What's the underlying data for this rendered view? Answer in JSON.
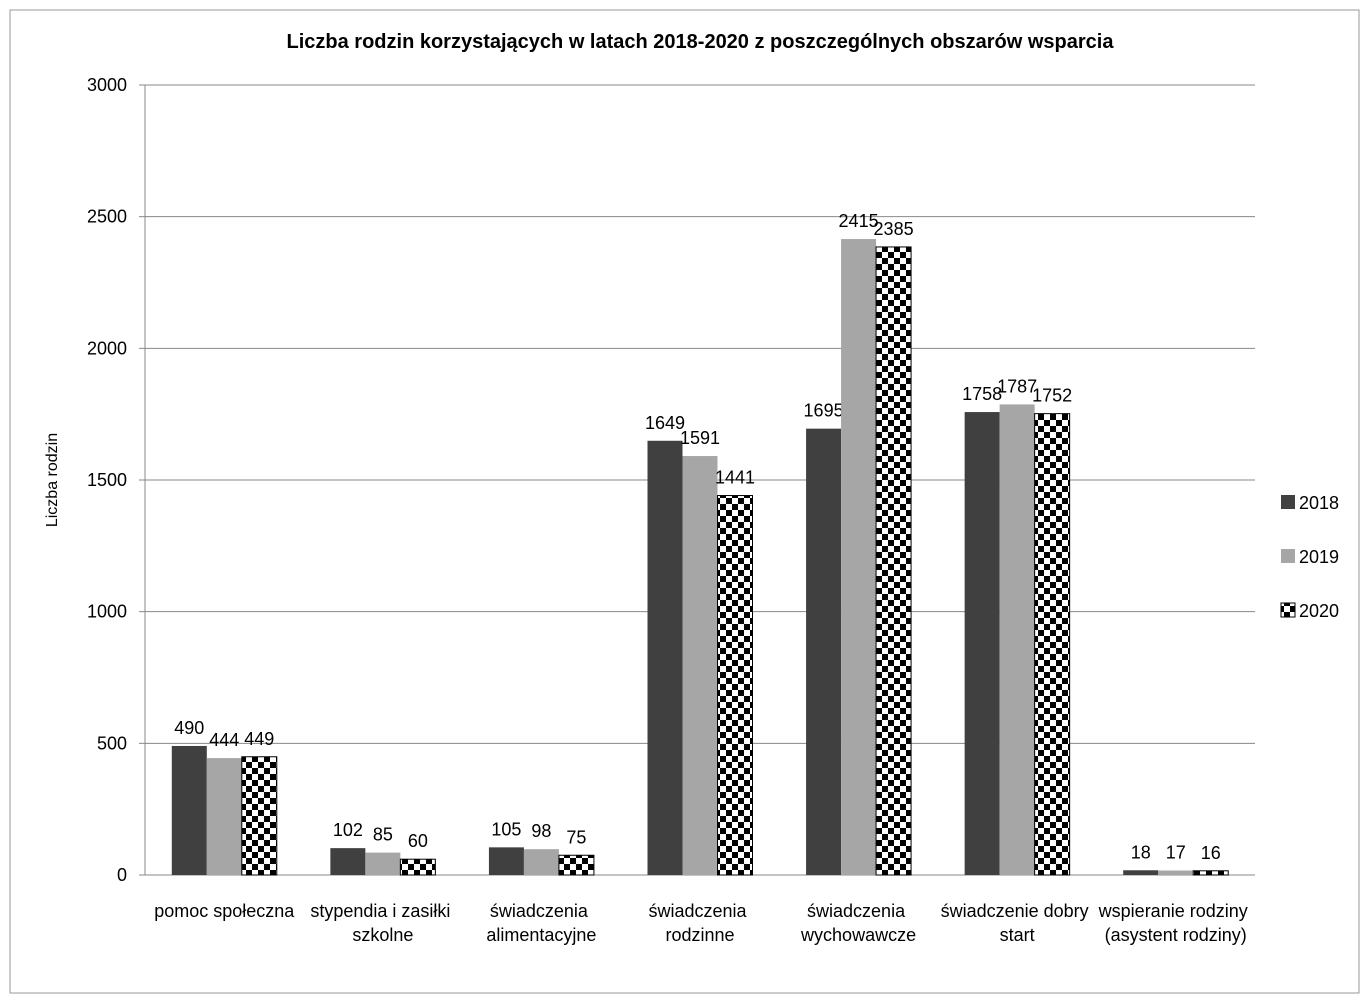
{
  "chart_data": {
    "type": "bar",
    "title": "Liczba rodzin korzystających w latach 2018-2020 z poszczególnych obszarów wsparcia",
    "y_label": "Liczba rodzin",
    "categories": [
      "pomoc społeczna",
      "stypendia i zasiłki szkolne",
      "świadczenia alimentacyjne",
      "świadczenia rodzinne",
      "świadczenia wychowawcze",
      "świadczenie dobry start",
      "wspieranie rodziny (asystent rodziny)"
    ],
    "series": [
      {
        "name": "2018",
        "color": "#404040",
        "values": [
          490,
          102,
          105,
          1649,
          1695,
          1758,
          18
        ]
      },
      {
        "name": "2019",
        "color": "#a6a6a6",
        "values": [
          444,
          85,
          98,
          1591,
          2415,
          1787,
          17
        ]
      },
      {
        "name": "2020",
        "color": "#000000",
        "pattern": "checkerboard",
        "values": [
          449,
          60,
          75,
          1441,
          2385,
          1752,
          16
        ]
      }
    ],
    "ylim": [
      0,
      3000
    ],
    "yticks": [
      0,
      500,
      1000,
      1500,
      2000,
      2500,
      3000
    ],
    "grid": true,
    "legend": "right"
  }
}
